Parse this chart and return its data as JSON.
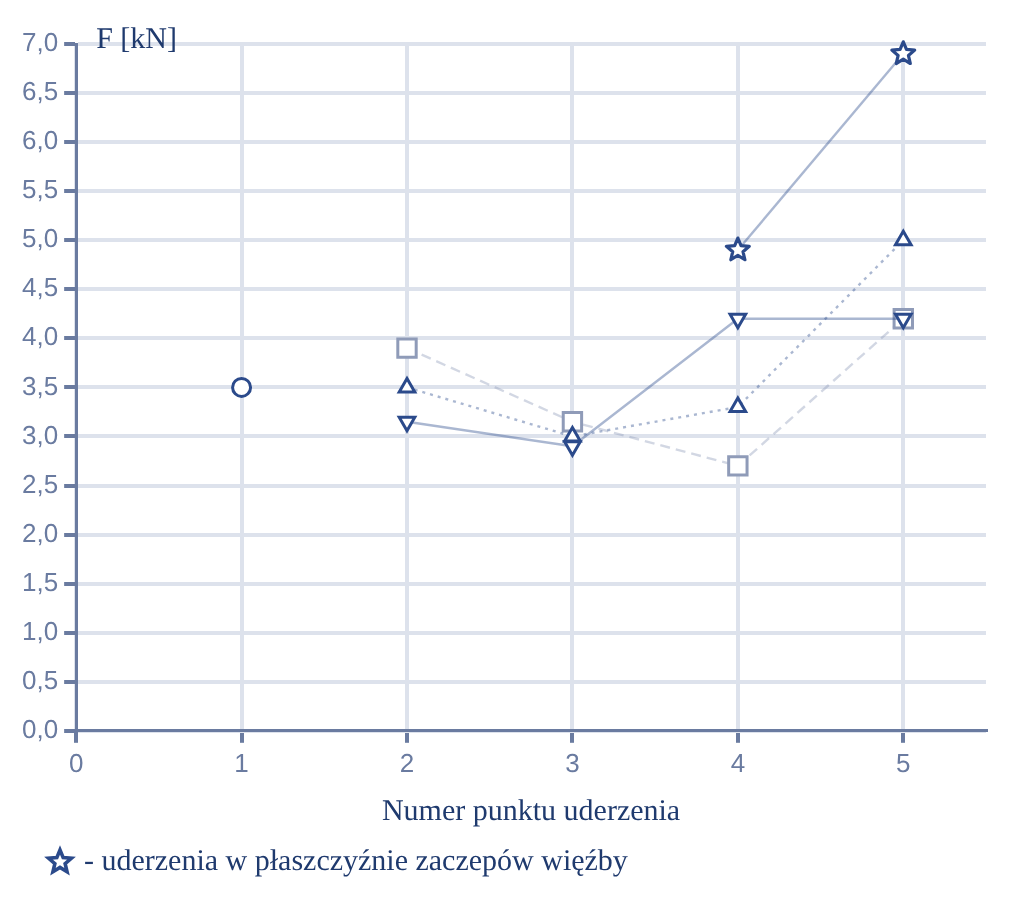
{
  "chart_data": {
    "type": "line",
    "xlabel": "Numer punktu uderzenia",
    "ylabel": "F [kN]",
    "xlim": [
      0,
      5.5
    ],
    "xticks": [
      0,
      1,
      2,
      3,
      4,
      5
    ],
    "ylim": [
      0,
      7
    ],
    "yticks": [
      {
        "value": 0,
        "label": "0,0"
      },
      {
        "value": 0.5,
        "label": "0,5"
      },
      {
        "value": 1,
        "label": "1,0"
      },
      {
        "value": 1.5,
        "label": "1,5"
      },
      {
        "value": 2,
        "label": "2,0"
      },
      {
        "value": 2.5,
        "label": "2,5"
      },
      {
        "value": 3,
        "label": "3,0"
      },
      {
        "value": 3.5,
        "label": "3,5"
      },
      {
        "value": 4,
        "label": "4,0"
      },
      {
        "value": 4.5,
        "label": "4,5"
      },
      {
        "value": 5,
        "label": "5,0"
      },
      {
        "value": 5.5,
        "label": "5,5"
      },
      {
        "value": 6,
        "label": "6,0"
      },
      {
        "value": 6.5,
        "label": "6,5"
      },
      {
        "value": 7,
        "label": "7,0"
      }
    ],
    "grid": true,
    "legend": "bottom",
    "series": [
      {
        "name": "- uderzenia w płaszczyźnie zaczepów więźby",
        "color": "#2b4a8b",
        "x": [
          4,
          5
        ],
        "values": [
          4.9,
          6.9
        ],
        "marker": "star",
        "line_style": "solid"
      },
      {
        "color": "#2b4a8b",
        "x": [
          1
        ],
        "values": [
          3.5
        ],
        "marker": "circle",
        "line_style": "solid"
      },
      {
        "color": "#2b4a8b",
        "x": [
          2,
          3,
          4,
          5
        ],
        "values": [
          3.5,
          3.0,
          3.3,
          5.0
        ],
        "marker": "triangle",
        "line_style": "dotted"
      },
      {
        "color": "#2b4a8b",
        "x": [
          2,
          3,
          4,
          5
        ],
        "values": [
          3.15,
          2.9,
          4.2,
          4.2
        ],
        "marker": "triangle_down",
        "line_style": "solid"
      },
      {
        "color": "#8f9bb8",
        "x": [
          2,
          3,
          4,
          5
        ],
        "values": [
          3.9,
          3.15,
          2.7,
          4.2
        ],
        "marker": "square",
        "line_style": "dashed"
      }
    ]
  }
}
